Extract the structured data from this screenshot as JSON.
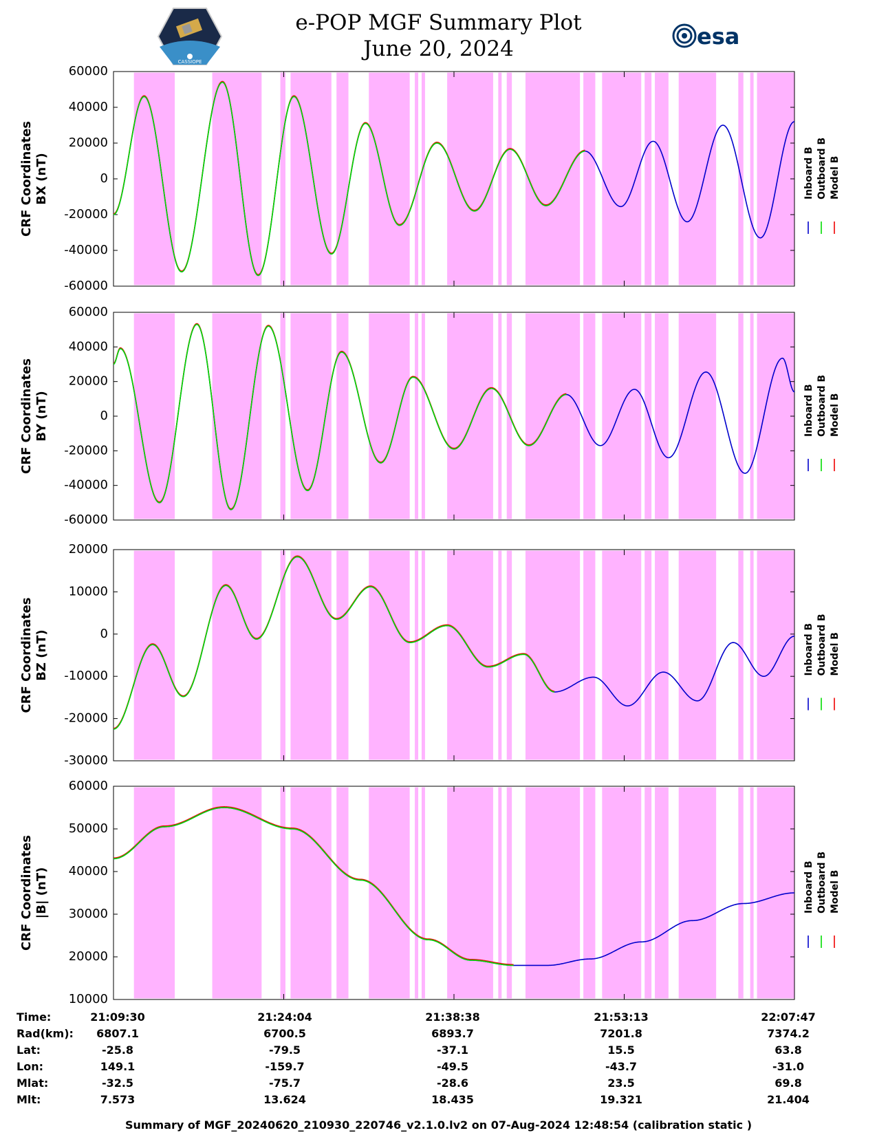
{
  "header": {
    "title_line1": "e-POP MGF Summary Plot",
    "title_line2": "June 20, 2024",
    "logo_left_text": "CASSIOPE",
    "logo_right_text": "esa"
  },
  "colors": {
    "inboard": "#0000cc",
    "outboard": "#00dd00",
    "model": "#ee0000",
    "shade": "#ffb3ff"
  },
  "chart_data": [
    {
      "type": "line",
      "panel": "bx",
      "ylabel_line1": "CRF Coordinates",
      "ylabel_line2": "BX (nT)",
      "ylim": [
        -60000,
        60000
      ],
      "yticks": [
        "60000",
        "40000",
        "20000",
        "0",
        "-20000",
        "-40000",
        "-60000"
      ],
      "legend": [
        "Inboard B",
        "Outboard B",
        "Model B"
      ],
      "series_keypoints": [
        [
          0,
          -20000
        ],
        [
          1.8,
          46000
        ],
        [
          4.0,
          -52000
        ],
        [
          6.4,
          54000
        ],
        [
          8.5,
          -54000
        ],
        [
          10.6,
          46000
        ],
        [
          12.8,
          -42000
        ],
        [
          14.8,
          31000
        ],
        [
          16.8,
          -26000
        ],
        [
          19.0,
          20000
        ],
        [
          21.2,
          -18000
        ],
        [
          23.3,
          16500
        ],
        [
          25.4,
          -15000
        ],
        [
          27.7,
          15500
        ],
        [
          29.8,
          -15500
        ],
        [
          31.7,
          21000
        ],
        [
          33.7,
          -24000
        ],
        [
          35.8,
          30000
        ],
        [
          38.0,
          -33000
        ],
        [
          40.0,
          32000
        ]
      ],
      "outboard_until": 27.7
    },
    {
      "type": "line",
      "panel": "by",
      "ylabel_line1": "CRF Coordinates",
      "ylabel_line2": "BY (nT)",
      "ylim": [
        -60000,
        60000
      ],
      "yticks": [
        "60000",
        "40000",
        "20000",
        "0",
        "-20000",
        "-40000",
        "-60000"
      ],
      "legend": [
        "Inboard B",
        "Outboard B",
        "Model B"
      ],
      "series_keypoints": [
        [
          0,
          30000
        ],
        [
          0.4,
          39000
        ],
        [
          2.7,
          -50000
        ],
        [
          4.9,
          53000
        ],
        [
          6.9,
          -54000
        ],
        [
          9.1,
          52000
        ],
        [
          11.4,
          -43000
        ],
        [
          13.4,
          37000
        ],
        [
          15.7,
          -27000
        ],
        [
          17.6,
          22500
        ],
        [
          20.0,
          -19000
        ],
        [
          22.2,
          16000
        ],
        [
          24.4,
          -17000
        ],
        [
          26.6,
          12500
        ],
        [
          28.6,
          -17000
        ],
        [
          30.6,
          15500
        ],
        [
          32.6,
          -24000
        ],
        [
          34.8,
          25500
        ],
        [
          37.1,
          -33000
        ],
        [
          39.3,
          33500
        ],
        [
          40.0,
          14000
        ]
      ],
      "outboard_until": 26.6
    },
    {
      "type": "line",
      "panel": "bz",
      "ylabel_line1": "CRF Coordinates",
      "ylabel_line2": "BZ (nT)",
      "ylim": [
        -30000,
        20000
      ],
      "yticks": [
        "20000",
        "10000",
        "0",
        "-10000",
        "-20000",
        "-30000"
      ],
      "legend": [
        "Inboard B",
        "Outboard B",
        "Model B"
      ],
      "series_keypoints": [
        [
          0,
          -22500
        ],
        [
          2.3,
          -2500
        ],
        [
          4.1,
          -14800
        ],
        [
          6.6,
          11500
        ],
        [
          8.4,
          -1200
        ],
        [
          10.8,
          18300
        ],
        [
          13.1,
          3500
        ],
        [
          15.1,
          11200
        ],
        [
          17.4,
          -2000
        ],
        [
          19.6,
          2000
        ],
        [
          22.0,
          -7800
        ],
        [
          24.1,
          -4800
        ],
        [
          25.9,
          -13700
        ],
        [
          28.2,
          -10200
        ],
        [
          30.2,
          -17000
        ],
        [
          32.3,
          -9000
        ],
        [
          34.3,
          -15800
        ],
        [
          36.4,
          -2000
        ],
        [
          38.2,
          -10000
        ],
        [
          40.0,
          -500
        ]
      ],
      "outboard_until": 25.9
    },
    {
      "type": "line",
      "panel": "bmag",
      "ylabel_line1": "CRF Coordinates",
      "ylabel_line2": "|B| (nT)",
      "ylim": [
        10000,
        60000
      ],
      "yticks": [
        "60000",
        "50000",
        "40000",
        "30000",
        "20000",
        "10000"
      ],
      "legend": [
        "Inboard B",
        "Outboard B",
        "Model B"
      ],
      "series_keypoints": [
        [
          0,
          43000
        ],
        [
          3.0,
          50500
        ],
        [
          6.5,
          55000
        ],
        [
          10.5,
          50000
        ],
        [
          14.5,
          38000
        ],
        [
          18.5,
          24000
        ],
        [
          21.0,
          19200
        ],
        [
          23.5,
          18000
        ],
        [
          25.5,
          18000
        ],
        [
          28.0,
          19500
        ],
        [
          31.0,
          23500
        ],
        [
          34.0,
          28500
        ],
        [
          37.0,
          32500
        ],
        [
          40.0,
          35000
        ]
      ],
      "outboard_until": 23.5
    }
  ],
  "shading_intervals": [
    [
      1.2,
      3.6
    ],
    [
      5.8,
      8.7
    ],
    [
      9.8,
      10.1
    ],
    [
      10.4,
      12.8
    ],
    [
      13.1,
      13.8
    ],
    [
      15.0,
      17.4
    ],
    [
      17.7,
      17.9
    ],
    [
      18.1,
      18.3
    ],
    [
      19.6,
      22.3
    ],
    [
      22.6,
      22.8
    ],
    [
      23.1,
      23.4
    ],
    [
      24.2,
      27.4
    ],
    [
      27.6,
      28.3
    ],
    [
      28.7,
      31.0
    ],
    [
      31.2,
      31.6
    ],
    [
      31.8,
      32.6
    ],
    [
      33.2,
      35.4
    ],
    [
      36.7,
      37.0
    ],
    [
      37.4,
      37.6
    ],
    [
      37.8,
      40.0
    ]
  ],
  "time_labels": [
    "21:09:30",
    "21:24:04",
    "21:38:38",
    "21:53:13",
    "22:07:47"
  ],
  "info_table": {
    "labels": [
      "Time:",
      "Rad(km):",
      "Lat:",
      "Lon:",
      "Mlat:",
      "Mlt:"
    ],
    "rows": [
      [
        "21:09:30",
        "21:24:04",
        "21:38:38",
        "21:53:13",
        "22:07:47"
      ],
      [
        "6807.1",
        "6700.5",
        "6893.7",
        "7201.8",
        "7374.2"
      ],
      [
        "-25.8",
        "-79.5",
        "-37.1",
        "15.5",
        "63.8"
      ],
      [
        "149.1",
        "-159.7",
        "-49.5",
        "-43.7",
        "-31.0"
      ],
      [
        "-32.5",
        "-75.7",
        "-28.6",
        "23.5",
        "69.8"
      ],
      [
        "7.573",
        "13.624",
        "18.435",
        "19.321",
        "21.404"
      ]
    ]
  },
  "footer": "Summary of MGF_20240620_210930_220746_v2.1.0.lv2 on 07-Aug-2024 12:48:54 (calibration static )"
}
